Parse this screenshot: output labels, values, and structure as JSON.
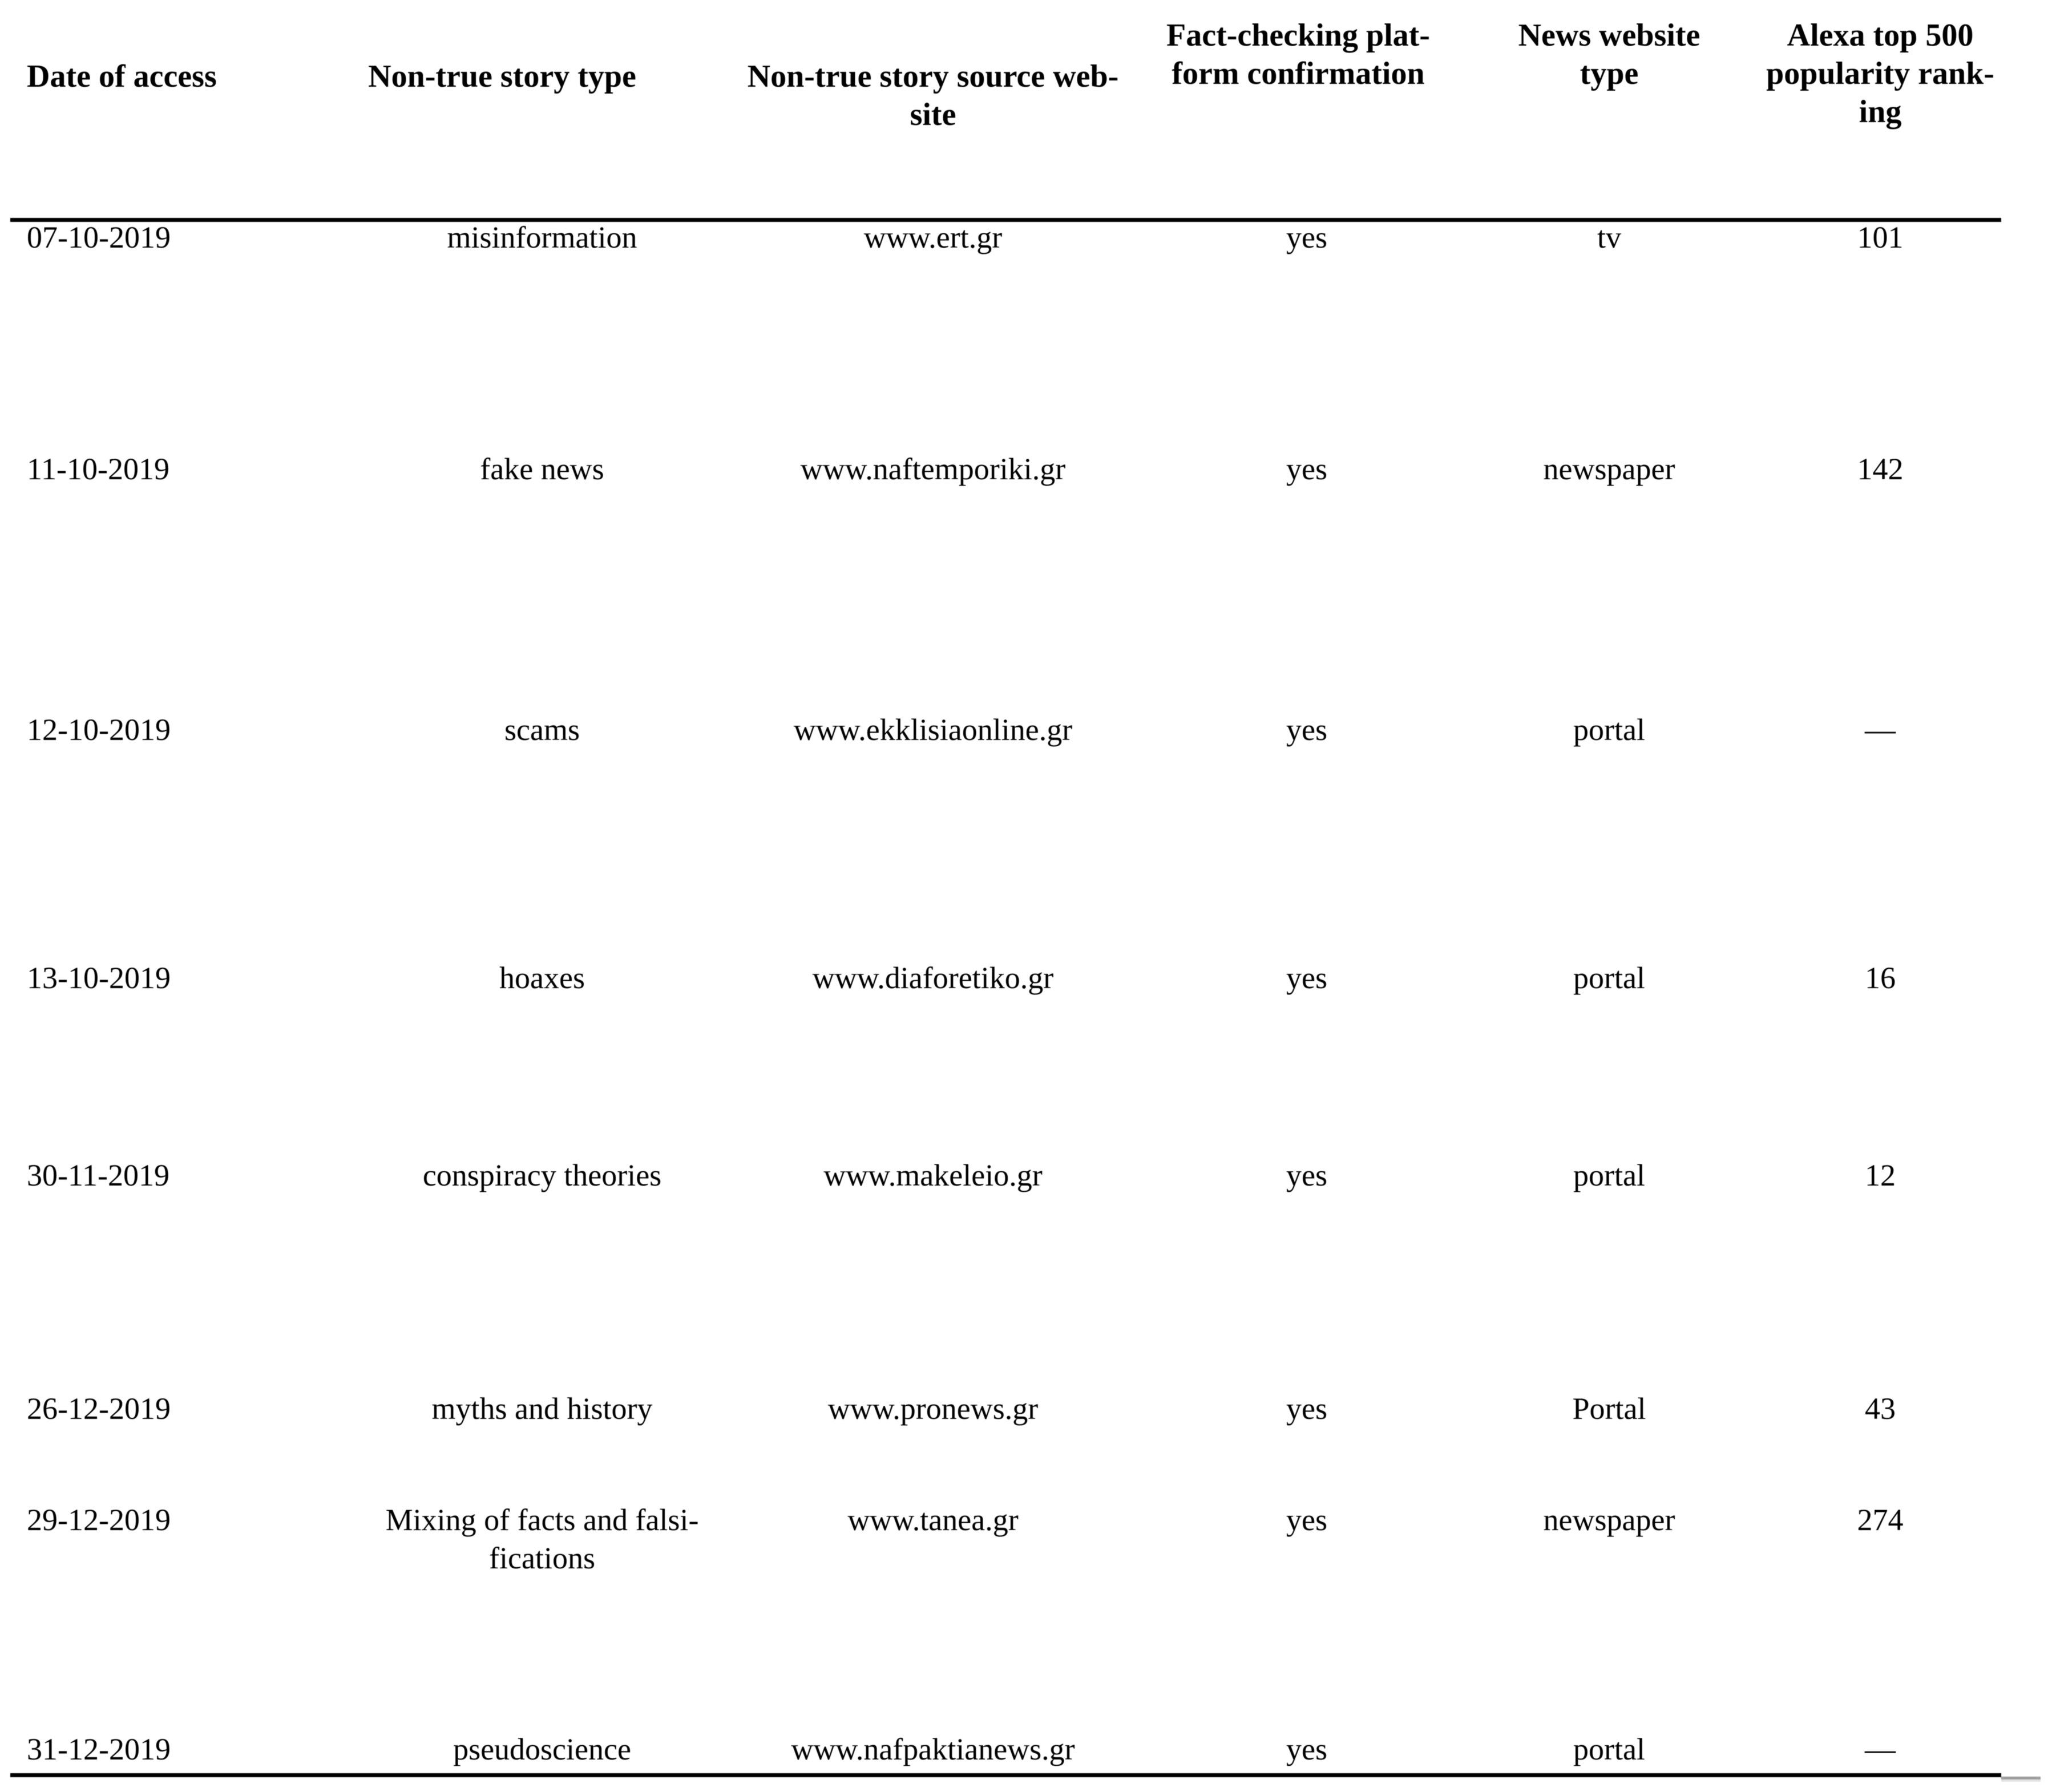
{
  "page": {
    "background_color": "#ffffff",
    "text_color": "#000000",
    "rule_color": "#000000",
    "scrollbar_artifact_color": "#9f9f9f"
  },
  "table": {
    "columns": [
      {
        "id": "date",
        "label": "Date of access"
      },
      {
        "id": "story_type",
        "label": "Non-true story type"
      },
      {
        "id": "source",
        "label": "Non-true story source web-\nsite"
      },
      {
        "id": "fact_check",
        "label": "Fact-checking plat-\nform confirmation"
      },
      {
        "id": "website_type",
        "label": "News website\ntype"
      },
      {
        "id": "alexa_rank",
        "label": "Alexa top 500\npopularity rank-\ning"
      }
    ],
    "rows": [
      {
        "date": "07-10-2019",
        "story_type": "misinformation",
        "source": "www.ert.gr",
        "fact_check": "yes",
        "website_type": "tv",
        "alexa_rank": "101"
      },
      {
        "date": "11-10-2019",
        "story_type": "fake news",
        "source": "www.naftemporiki.gr",
        "fact_check": "yes",
        "website_type": "newspaper",
        "alexa_rank": "142"
      },
      {
        "date": "12-10-2019",
        "story_type": "scams",
        "source": "www.ekklisiaonline.gr",
        "fact_check": "yes",
        "website_type": "portal",
        "alexa_rank": "—"
      },
      {
        "date": "13-10-2019",
        "story_type": "hoaxes",
        "source": "www.diaforetiko.gr",
        "fact_check": "yes",
        "website_type": "portal",
        "alexa_rank": "16"
      },
      {
        "date": "30-11-2019",
        "story_type": "conspiracy theories",
        "source": "www.makeleio.gr",
        "fact_check": "yes",
        "website_type": "portal",
        "alexa_rank": "12"
      },
      {
        "date": "26-12-2019",
        "story_type": "myths and history",
        "source": "www.pronews.gr",
        "fact_check": "yes",
        "website_type": "Portal",
        "alexa_rank": "43"
      },
      {
        "date": "29-12-2019",
        "story_type": "Mixing of facts and falsi-\nfications",
        "source": "www.tanea.gr",
        "fact_check": "yes",
        "website_type": "newspaper",
        "alexa_rank": "274"
      },
      {
        "date": "31-12-2019",
        "story_type": "pseudoscience",
        "source": "www.nafpaktianews.gr",
        "fact_check": "yes",
        "website_type": "portal",
        "alexa_rank": "—"
      }
    ]
  }
}
